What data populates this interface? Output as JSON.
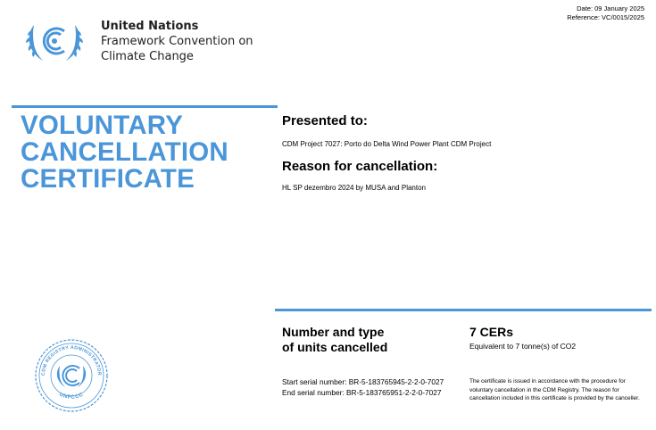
{
  "header": {
    "org_line1": "United Nations",
    "org_line2": "Framework Convention on",
    "org_line3": "Climate Change",
    "date": "Date: 09 January 2025",
    "reference": "Reference: VC/0015/2025"
  },
  "title": {
    "line1": "VOLUNTARY",
    "line2": "CANCELLATION",
    "line3": "CERTIFICATE"
  },
  "presented": {
    "heading": "Presented to:",
    "value": "CDM Project 7027: Porto do Delta Wind Power Plant CDM Project"
  },
  "reason": {
    "heading": "Reason for cancellation:",
    "value": "HL SP dezembro 2024 by MUSA and Planton"
  },
  "units": {
    "heading_line1": "Number and type",
    "heading_line2": "of units cancelled",
    "count": "7 CERs",
    "equivalent": "Equivalent to 7 tonne(s) of CO2"
  },
  "serials": {
    "start_label": "Start serial number:",
    "start_value": "BR-5-183765945-2-2-0-7027",
    "end_label": "End serial number:",
    "end_value": "BR-5-183765951-2-2-0-7027"
  },
  "note": "The certificate is issued in accordance with the procedure for voluntary cancellation in the CDM Registry. The reason for cancellation included in this certificate is provided by the canceller.",
  "seal": {
    "text_top": "CDM REGISTRY ADMINISTRATOR",
    "text_bottom": "UNFCCC"
  },
  "colors": {
    "accent": "#4b96d8"
  },
  "icons": {
    "logo": "unfccc-logo-icon",
    "seal": "registry-seal-icon"
  }
}
